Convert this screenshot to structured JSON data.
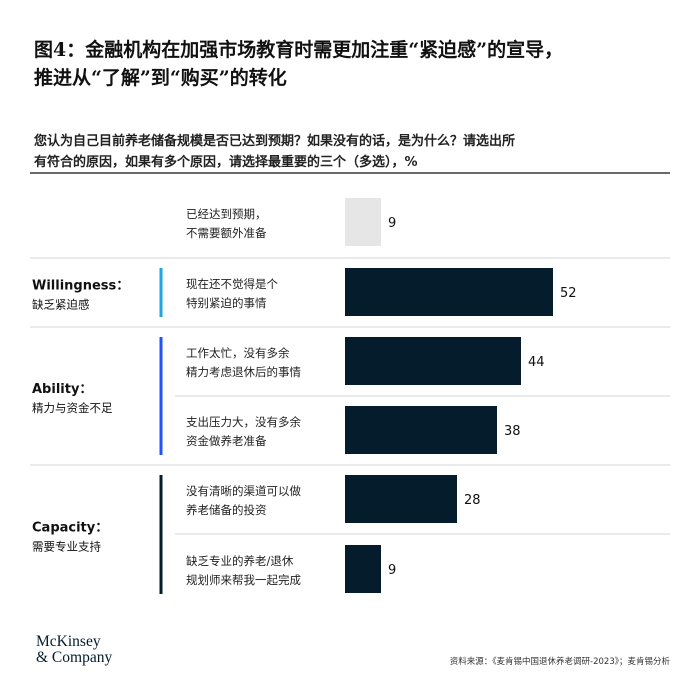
{
  "title": {
    "line1": "图4：金融机构在加强市场教育时需更加注重“紧迫感”的宣导，",
    "line2": "推进从“了解”到“购买”的转化"
  },
  "question": {
    "line1": "您认为自己目前养老储备规模是否已达到预期？如果没有的话，是为什么？请选出所",
    "line2": "有符合的原因，如果有多个原因，请选择最重要的三个（多选），%"
  },
  "chart_data": {
    "type": "bar",
    "orientation": "horizontal",
    "unit": "%",
    "xlim": [
      0,
      100
    ],
    "groups": [
      {
        "name": "",
        "title": "",
        "subtitle": "",
        "color": "",
        "rows": [
          0
        ]
      },
      {
        "name": "Willingness",
        "title": "Willingness：",
        "subtitle": "缺乏紧迫感",
        "color": "#1fa6e0",
        "rows": [
          1
        ]
      },
      {
        "name": "Ability",
        "title": "Ability：",
        "subtitle": "精力与资金不足",
        "color": "#2251ff",
        "rows": [
          2,
          3
        ]
      },
      {
        "name": "Capacity",
        "title": "Capacity：",
        "subtitle": "需要专业支持",
        "color": "#051c2c",
        "rows": [
          4,
          5
        ]
      }
    ],
    "categories": [
      [
        "已经达到预期，",
        "不需要额外准备"
      ],
      [
        "现在还不觉得是个",
        "特别紧迫的事情"
      ],
      [
        "工作太忙，没有多余",
        "精力考虑退休后的事情"
      ],
      [
        "支出压力大，没有多余",
        "资金做养老准备"
      ],
      [
        "没有清晰的渠道可以做",
        "养老储备的投资"
      ],
      [
        "缺乏专业的养老/退休",
        "规划师来帮我一起完成"
      ]
    ],
    "values": [
      9,
      52,
      44,
      38,
      28,
      9
    ],
    "bar_colors": [
      "#e6e6e6",
      "#051c2c",
      "#051c2c",
      "#051c2c",
      "#051c2c",
      "#051c2c"
    ]
  },
  "source": "资料来源：《麦肯锡中国退休养老调研-2023》；麦肯锡分析",
  "logo": {
    "line1": "McKinsey",
    "line2": "& Company"
  }
}
